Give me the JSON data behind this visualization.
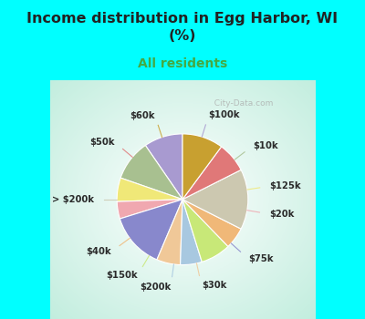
{
  "title": "Income distribution in Egg Harbor, WI\n(%)",
  "subtitle": "All residents",
  "title_color": "#222222",
  "subtitle_color": "#44aa44",
  "bg_cyan": "#00ffff",
  "bg_chart_outer": "#b8ead8",
  "bg_chart_inner": "#ffffff",
  "labels": [
    "$100k",
    "$10k",
    "$125k",
    "$20k",
    "$75k",
    "$30k",
    "$200k",
    "$150k",
    "$40k",
    "> $200k",
    "$50k",
    "$60k"
  ],
  "values": [
    9.0,
    9.5,
    5.5,
    4.0,
    13.0,
    5.5,
    5.0,
    7.0,
    5.0,
    14.0,
    7.0,
    9.5
  ],
  "colors": [
    "#a89ad0",
    "#a8c090",
    "#f0e878",
    "#f0a8b0",
    "#8888cc",
    "#f0c898",
    "#a8c8e0",
    "#c8e878",
    "#f0b878",
    "#ccc8b0",
    "#e07878",
    "#c8a030"
  ],
  "line_colors": [
    "#a89ad0",
    "#a8c090",
    "#f0e878",
    "#f0a8b0",
    "#8888cc",
    "#f0c898",
    "#a8c8e0",
    "#c8e878",
    "#f0b878",
    "#ccc8b0",
    "#e07878",
    "#c8a030"
  ],
  "startangle": 90,
  "watermark": "  City-Data.com"
}
